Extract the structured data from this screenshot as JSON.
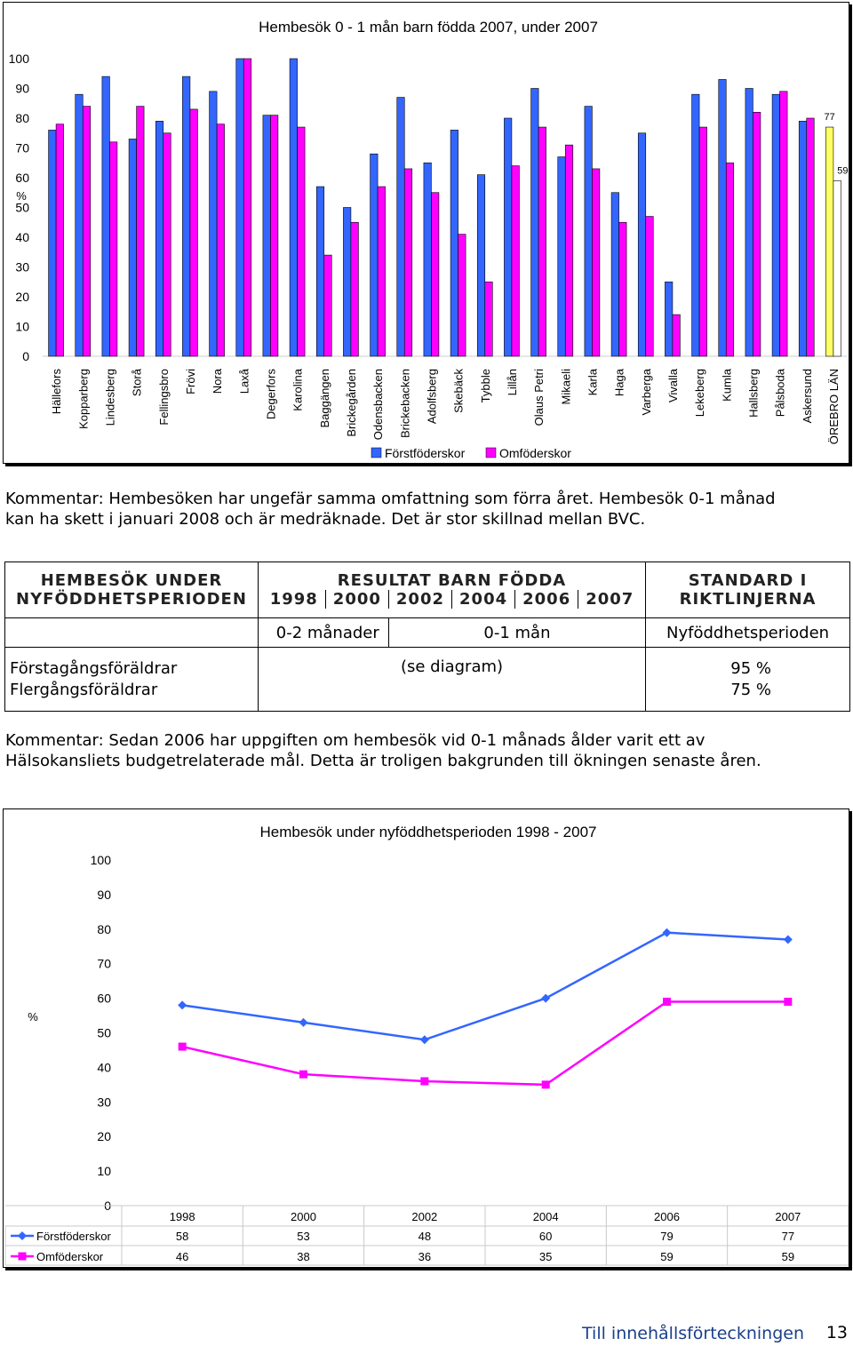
{
  "chart_data": [
    {
      "type": "bar",
      "title": "Hembesök 0 - 1 mån barn födda 2007, under 2007",
      "ylabel": "%",
      "ylim": [
        0,
        100
      ],
      "yticks": [
        "0",
        "10",
        "20",
        "30",
        "40",
        "50",
        "60",
        "70",
        "80",
        "90",
        "100"
      ],
      "categories": [
        "Hällefors",
        "Kopparberg",
        "Lindesberg",
        "Storå",
        "Fellingsbro",
        "Frövi",
        "Nora",
        "Laxå",
        "Degerfors",
        "Karolina",
        "Baggängen",
        "Brickegården",
        "Odensbacken",
        "Brickebacken",
        "Adolfsberg",
        "Skebäck",
        "Tybble",
        "Lillån",
        "Olaus Petri",
        "Mikaeli",
        "Karla",
        "Haga",
        "Varberga",
        "Vivalla",
        "Lekeberg",
        "Kumla",
        "Hallsberg",
        "Pålsboda",
        "Askersund",
        "ÖREBRO LÄN"
      ],
      "series": [
        {
          "name": "Förstföderskor",
          "color": "#3366ff",
          "values": [
            76,
            88,
            94,
            73,
            79,
            94,
            89,
            100,
            81,
            100,
            57,
            50,
            68,
            87,
            65,
            76,
            61,
            80,
            90,
            67,
            84,
            55,
            75,
            25,
            88,
            93,
            90,
            88,
            79,
            77
          ]
        },
        {
          "name": "Omföderskor",
          "color": "#ff00ff",
          "values": [
            78,
            84,
            72,
            84,
            75,
            83,
            78,
            100,
            81,
            77,
            34,
            45,
            57,
            63,
            55,
            41,
            25,
            64,
            77,
            71,
            63,
            45,
            47,
            14,
            77,
            65,
            82,
            89,
            80,
            59
          ]
        }
      ],
      "highlight": {
        "category": "ÖREBRO LÄN",
        "colors": [
          "#ffff66",
          "#ffffff"
        ],
        "labels": [
          "77",
          "59"
        ]
      }
    },
    {
      "type": "line",
      "title": "Hembesök under nyföddhetsperioden 1998 - 2007",
      "ylabel": "%",
      "ylim": [
        0,
        100
      ],
      "yticks": [
        "0",
        "10",
        "20",
        "30",
        "40",
        "50",
        "60",
        "70",
        "80",
        "90",
        "100"
      ],
      "categories": [
        "1998",
        "2000",
        "2002",
        "2004",
        "2006",
        "2007"
      ],
      "series": [
        {
          "name": "Förstföderskor",
          "color": "#3366ff",
          "marker": "diamond",
          "values": [
            58,
            53,
            48,
            60,
            79,
            77
          ]
        },
        {
          "name": "Omföderskor",
          "color": "#ff00ff",
          "marker": "square",
          "values": [
            46,
            38,
            36,
            35,
            59,
            59
          ]
        }
      ]
    }
  ],
  "comment1": {
    "line1": "Kommentar: Hembesöken har ungefär samma omfattning som förra året. Hembesök 0-1 månad",
    "line2": "kan ha skett i januari 2008 och är medräknade. Det är stor skillnad mellan BVC."
  },
  "table": {
    "col1_header_line1": "HEMBESÖK UNDER",
    "col1_header_line2": "NYFÖDDHETSPERIODEN",
    "col2_header": "RESULTAT BARN FÖDDA",
    "years": [
      "1998",
      "2000",
      "2002",
      "2004",
      "2006",
      "2007"
    ],
    "col3_header_line1": "STANDARD I",
    "col3_header_line2": "RIKTLINJERNA",
    "sub_0_2": "0-2 månader",
    "sub_0_1": "0-1 mån",
    "sub_period": "Nyföddhetsperioden",
    "row1_label": "Förstagångsföräldrar",
    "row2_label": "Flergångsföräldrar",
    "result_note": "(se diagram)",
    "row1_standard": "95 %",
    "row2_standard": "75 %"
  },
  "comment2": {
    "line1": "Kommentar: Sedan 2006 har uppgiften om hembesök vid 0-1 månads ålder varit ett av",
    "line2": "Hälsokansliets budgetrelaterade mål. Detta är troligen bakgrunden till ökningen senaste åren."
  },
  "footer": {
    "link": "Till innehållsförteckningen",
    "page_number": "13"
  }
}
